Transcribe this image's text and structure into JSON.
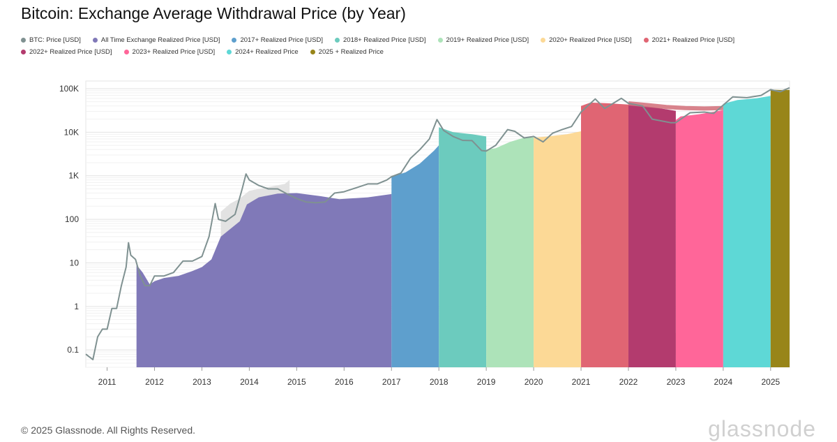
{
  "title": "Bitcoin: Exchange Average Withdrawal Price (by Year)",
  "footer": "© 2025 Glassnode. All Rights Reserved.",
  "brand": "glassnode",
  "chart_data": {
    "type": "area",
    "title": "Bitcoin: Exchange Average Withdrawal Price (by Year)",
    "yscale": "log",
    "ylim": [
      0.04,
      150000
    ],
    "xlim": [
      2010.55,
      2025.4
    ],
    "y_ticks": [
      {
        "value": 0.1,
        "label": "0.1"
      },
      {
        "value": 1,
        "label": "1"
      },
      {
        "value": 10,
        "label": "10"
      },
      {
        "value": 100,
        "label": "100"
      },
      {
        "value": 1000,
        "label": "1K"
      },
      {
        "value": 10000,
        "label": "10K"
      },
      {
        "value": 100000,
        "label": "100K"
      }
    ],
    "x_ticks": [
      {
        "value": 2011,
        "label": "2011"
      },
      {
        "value": 2012,
        "label": "2012"
      },
      {
        "value": 2013,
        "label": "2013"
      },
      {
        "value": 2014,
        "label": "2014"
      },
      {
        "value": 2015,
        "label": "2015"
      },
      {
        "value": 2016,
        "label": "2016"
      },
      {
        "value": 2017,
        "label": "2017"
      },
      {
        "value": 2018,
        "label": "2018"
      },
      {
        "value": 2019,
        "label": "2019"
      },
      {
        "value": 2020,
        "label": "2020"
      },
      {
        "value": 2021,
        "label": "2021"
      },
      {
        "value": 2022,
        "label": "2022"
      },
      {
        "value": 2023,
        "label": "2023"
      },
      {
        "value": 2024,
        "label": "2024"
      },
      {
        "value": 2025,
        "label": "2025"
      }
    ],
    "grid": true,
    "legend": "top",
    "series": [
      {
        "name": "BTC: Price [USD]",
        "color": "#7f9191",
        "kind": "line",
        "x": [
          2010.55,
          2010.7,
          2010.8,
          2010.9,
          2011.0,
          2011.1,
          2011.2,
          2011.3,
          2011.4,
          2011.45,
          2011.5,
          2011.6,
          2011.7,
          2011.8,
          2011.9,
          2012.0,
          2012.2,
          2012.4,
          2012.6,
          2012.8,
          2013.0,
          2013.15,
          2013.28,
          2013.35,
          2013.5,
          2013.7,
          2013.85,
          2013.93,
          2014.0,
          2014.2,
          2014.4,
          2014.6,
          2014.8,
          2015.0,
          2015.2,
          2015.4,
          2015.6,
          2015.8,
          2016.0,
          2016.3,
          2016.5,
          2016.7,
          2016.9,
          2017.0,
          2017.2,
          2017.4,
          2017.6,
          2017.8,
          2017.96,
          2018.1,
          2018.3,
          2018.5,
          2018.7,
          2018.9,
          2019.0,
          2019.2,
          2019.45,
          2019.6,
          2019.8,
          2020.0,
          2020.2,
          2020.4,
          2020.6,
          2020.8,
          2021.0,
          2021.3,
          2021.5,
          2021.85,
          2022.0,
          2022.3,
          2022.5,
          2022.9,
          2023.0,
          2023.3,
          2023.6,
          2023.8,
          2024.0,
          2024.2,
          2024.5,
          2024.8,
          2025.0,
          2025.2,
          2025.4
        ],
        "y": [
          0.08,
          0.06,
          0.2,
          0.3,
          0.3,
          0.9,
          0.9,
          3,
          8,
          29,
          15,
          12,
          5,
          3,
          3,
          5,
          5,
          6,
          11,
          11,
          14,
          40,
          230,
          100,
          90,
          130,
          500,
          1100,
          800,
          600,
          500,
          500,
          380,
          300,
          250,
          240,
          250,
          400,
          430,
          550,
          650,
          650,
          800,
          950,
          1150,
          2500,
          4000,
          7000,
          19500,
          11000,
          8000,
          6500,
          6400,
          3800,
          3700,
          5000,
          11500,
          10500,
          7400,
          8000,
          6000,
          9500,
          11500,
          13500,
          29000,
          58000,
          35000,
          60000,
          46000,
          40000,
          20000,
          16500,
          16600,
          28000,
          29000,
          27000,
          42000,
          65000,
          62000,
          70000,
          95000,
          85000,
          105000
        ]
      },
      {
        "name": "All Time Exchange Realized Price [USD]",
        "color": "#8079b8",
        "kind": "area",
        "x": [
          2011.62,
          2011.75,
          2011.9,
          2012.0,
          2012.2,
          2012.5,
          2012.8,
          2013.0,
          2013.2,
          2013.4,
          2013.6,
          2013.8,
          2013.95,
          2014.2,
          2014.6,
          2015.0,
          2015.5,
          2015.9,
          2016.5,
          2017.0
        ],
        "y": [
          9,
          6,
          3.2,
          3.8,
          4.5,
          5,
          6.5,
          8,
          12,
          40,
          60,
          90,
          220,
          320,
          390,
          400,
          340,
          290,
          320,
          380
        ]
      },
      {
        "name": "2017+ Realized Price [USD]",
        "color": "#5e9fcd",
        "kind": "area",
        "x": [
          2017.0,
          2017.3,
          2017.6,
          2017.9,
          2018.0
        ],
        "y": [
          950,
          1200,
          1900,
          3800,
          5000
        ]
      },
      {
        "name": "2018+ Realized Price [USD]",
        "color": "#6ccbbe",
        "kind": "area",
        "x": [
          2018.0,
          2018.3,
          2018.7,
          2019.0
        ],
        "y": [
          13000,
          10000,
          9000,
          8000
        ]
      },
      {
        "name": "2019+ Realized Price [USD]",
        "color": "#ade3b9",
        "kind": "area",
        "x": [
          2019.0,
          2019.2,
          2019.5,
          2019.8,
          2020.0
        ],
        "y": [
          4000,
          4300,
          6000,
          7500,
          7600
        ]
      },
      {
        "name": "2020+ Realized Price [USD]",
        "color": "#fcd996",
        "kind": "area",
        "x": [
          2020.0,
          2020.3,
          2020.7,
          2021.0
        ],
        "y": [
          7500,
          8000,
          9000,
          10500
        ]
      },
      {
        "name": "2021+ Realized Price [USD]",
        "color": "#e06573",
        "kind": "area",
        "x": [
          2021.0,
          2021.2,
          2021.6,
          2022.0
        ],
        "y": [
          40000,
          48000,
          46000,
          43000
        ]
      },
      {
        "name": "2022+ Realized Price [USD]",
        "color": "#b33b6e",
        "kind": "area",
        "x": [
          2022.0,
          2022.5,
          2023.0
        ],
        "y": [
          44000,
          38000,
          31000
        ]
      },
      {
        "name": "2023+ Realized Price [USD]",
        "color": "#ff6699",
        "kind": "area",
        "x": [
          2023.0,
          2023.1,
          2023.5,
          2024.0
        ],
        "y": [
          19000,
          23000,
          26000,
          32000
        ]
      },
      {
        "name": "2024+ Realized Price",
        "color": "#5ed8d6",
        "kind": "area",
        "x": [
          2024.0,
          2024.3,
          2024.7,
          2025.0
        ],
        "y": [
          45000,
          55000,
          60000,
          68000
        ]
      },
      {
        "name": "2025 + Realized Price",
        "color": "#988519",
        "kind": "area",
        "x": [
          2025.0,
          2025.2,
          2025.4
        ],
        "y": [
          95000,
          93000,
          94000
        ]
      }
    ],
    "ghost_area": {
      "color": "#e2e2e2",
      "x": [
        2013.4,
        2013.6,
        2013.8,
        2014.0,
        2014.4,
        2014.75,
        2014.85
      ],
      "y": [
        150,
        230,
        300,
        450,
        550,
        650,
        800
      ]
    },
    "overlay_line": {
      "color": "#d4767f",
      "x": [
        2022.0,
        2022.4,
        2022.8,
        2023.2,
        2023.6,
        2024.0
      ],
      "y": [
        46000,
        42000,
        38000,
        36000,
        35000,
        36000
      ]
    }
  }
}
